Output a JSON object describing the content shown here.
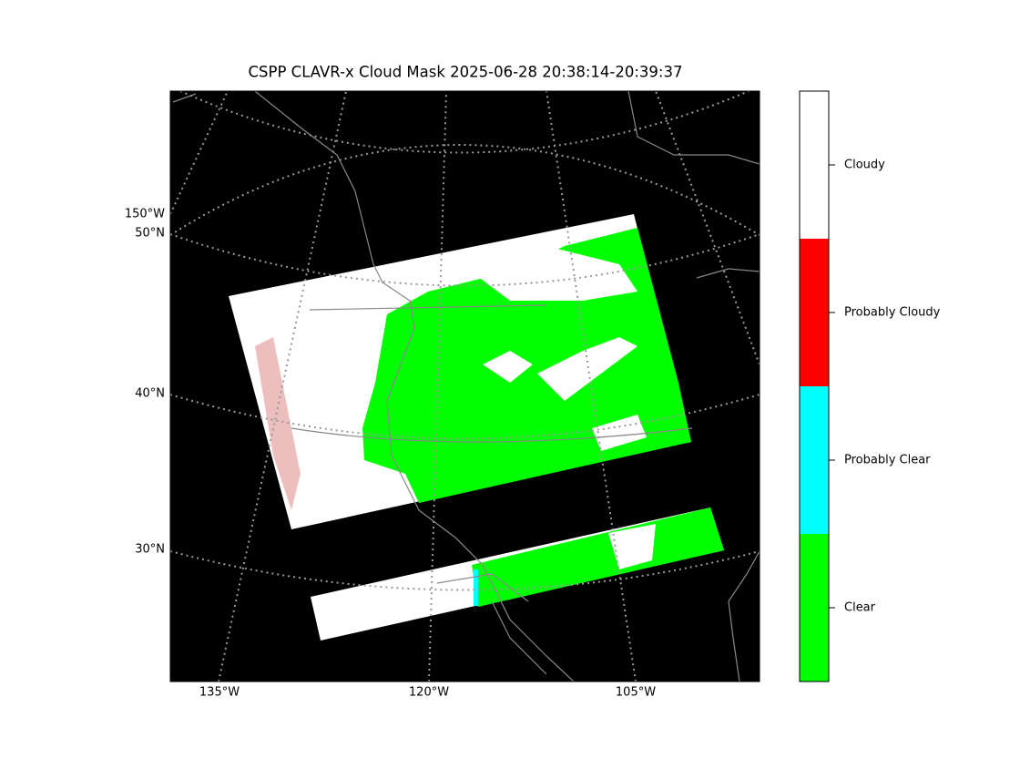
{
  "title": "CSPP CLAVR-x Cloud Mask 2025-06-28 20:38:14-20:39:37",
  "map": {
    "lon_labels": [
      "135°W",
      "120°W",
      "105°W"
    ],
    "lat_labels": [
      "150°W",
      "50°N",
      "40°N",
      "30°N"
    ]
  },
  "colorbar": {
    "categories": [
      {
        "label": "Cloudy",
        "color": "#ffffff"
      },
      {
        "label": "Probably Cloudy",
        "color": "#ff0000"
      },
      {
        "label": "Probably Clear",
        "color": "#00ffff"
      },
      {
        "label": "Clear",
        "color": "#00ff00"
      }
    ]
  }
}
